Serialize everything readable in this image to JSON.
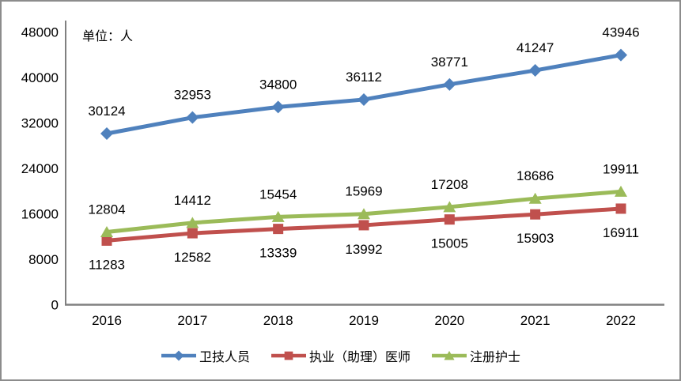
{
  "unit_label": "单位：人",
  "chart_data": {
    "type": "line",
    "title": "",
    "xlabel": "",
    "ylabel": "",
    "unit_label": "单位：人",
    "x": [
      "2016",
      "2017",
      "2018",
      "2019",
      "2020",
      "2021",
      "2022"
    ],
    "series": [
      {
        "name": "卫技人员",
        "key": "health-technicians",
        "color": "#4F81BD",
        "marker": "diamond",
        "label_position": "above",
        "values": [
          30124,
          32953,
          34800,
          36112,
          38771,
          41247,
          43946
        ]
      },
      {
        "name": "执业（助理）医师",
        "key": "licensed-assistant-physicians",
        "color": "#C0504D",
        "marker": "square",
        "label_position": "below",
        "values": [
          11283,
          12582,
          13339,
          13992,
          15005,
          15903,
          16911
        ]
      },
      {
        "name": "注册护士",
        "key": "registered-nurses",
        "color": "#9BBB59",
        "marker": "triangle",
        "label_position": "above",
        "values": [
          12804,
          14412,
          15454,
          15969,
          17208,
          18686,
          19911
        ]
      }
    ],
    "ylim": [
      0,
      48000
    ],
    "y_ticks": [
      0,
      8000,
      16000,
      24000,
      32000,
      40000,
      48000
    ],
    "grid": false,
    "legend_position": "bottom",
    "axis_color": "#808080",
    "frame_border_color": "#8C8C8C"
  }
}
